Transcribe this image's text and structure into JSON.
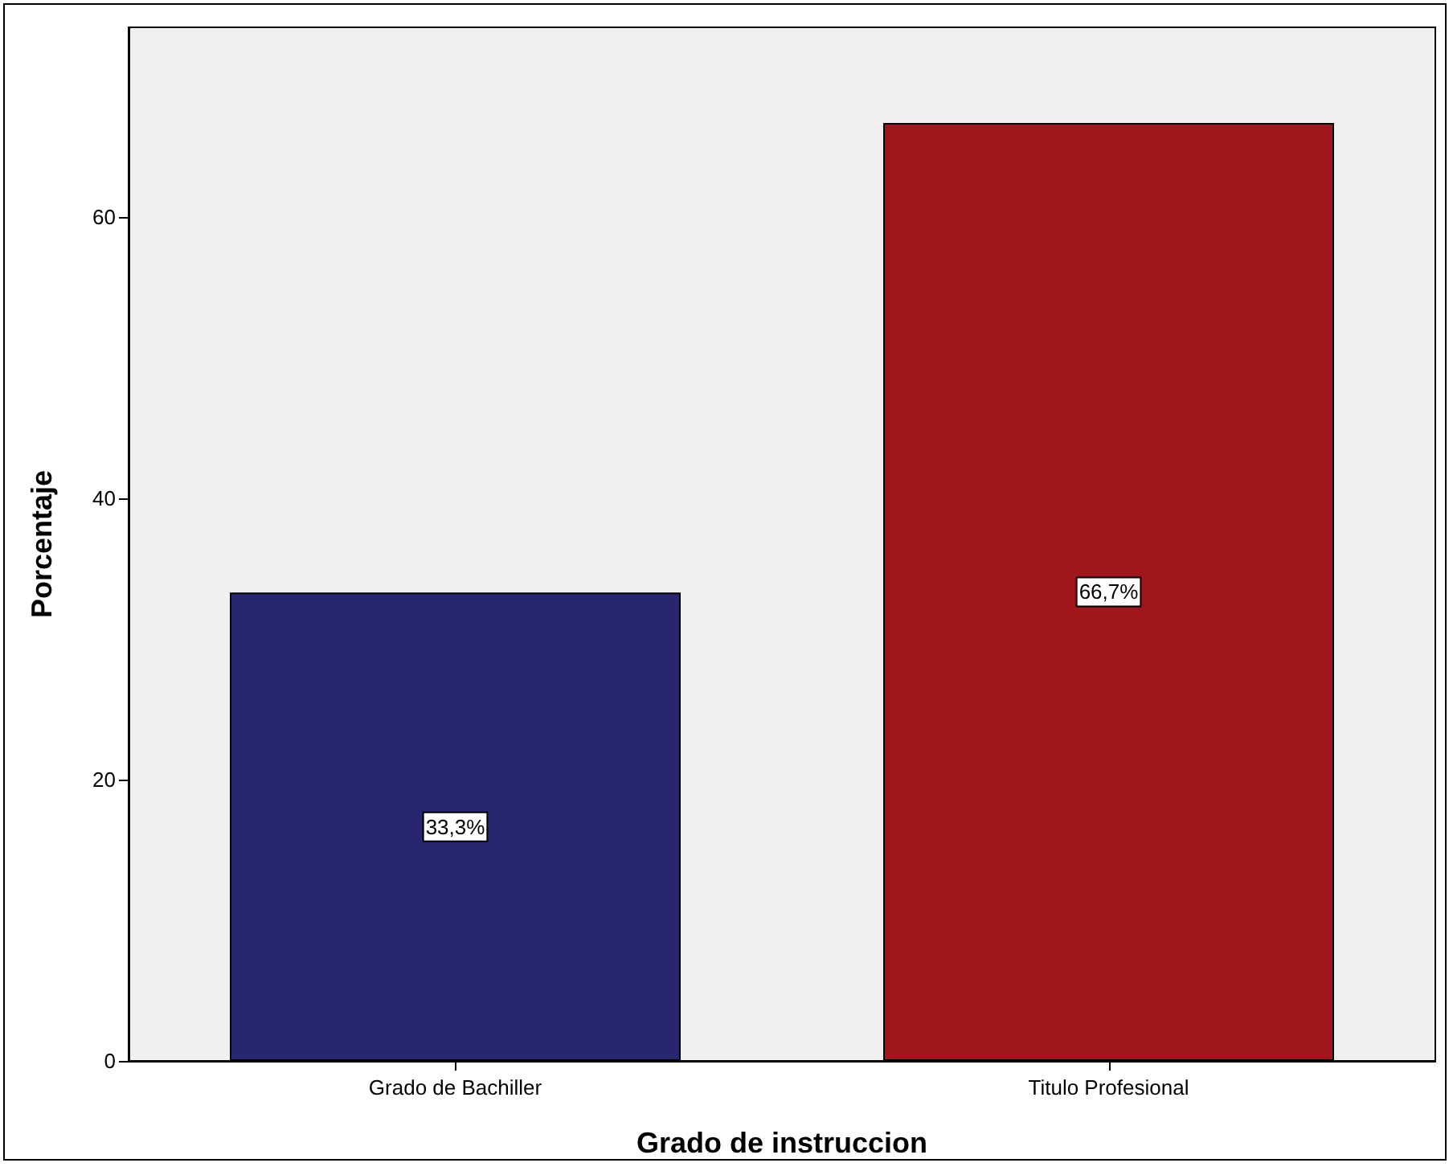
{
  "chart_data": {
    "type": "bar",
    "xlabel": "Grado de instruccion",
    "ylabel": "Porcentaje",
    "categories": [
      "Grado de Bachiller",
      "Titulo Profesional"
    ],
    "values": [
      33.3,
      66.7
    ],
    "colors": [
      "#26276f",
      "#a0161b"
    ],
    "value_labels": [
      "33,3%",
      "66,7%"
    ],
    "ylim": [
      0,
      73.5
    ],
    "yticks": [
      0,
      20,
      40,
      60
    ],
    "grid": false
  }
}
